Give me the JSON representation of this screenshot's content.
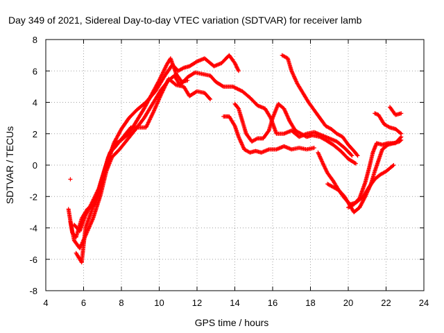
{
  "chart_data": {
    "type": "scatter",
    "title": "Day 349 of 2021, Sidereal Day-to-day VTEC variation (SDTVAR) for receiver lamb",
    "xlabel": "GPS time / hours",
    "ylabel": "SDTVAR / TECUs",
    "xlim": [
      4,
      24
    ],
    "ylim": [
      -8,
      8
    ],
    "xticks": [
      4,
      6,
      8,
      10,
      12,
      14,
      16,
      18,
      20,
      22,
      24
    ],
    "yticks": [
      -8,
      -6,
      -4,
      -2,
      0,
      2,
      4,
      6,
      8
    ],
    "xtick_labels": [
      "4",
      "6",
      "8",
      "10",
      "12",
      "14",
      "16",
      "18",
      "20",
      "22",
      "24"
    ],
    "ytick_labels": [
      "-8",
      "-6",
      "-4",
      "-2",
      "0",
      "2",
      "4",
      "6",
      "8"
    ],
    "grid": true,
    "marker": "plus",
    "color": "#ff0000",
    "series": [
      {
        "points": [
          [
            5.3,
            -0.9
          ]
        ]
      },
      {
        "points": [
          [
            5.2,
            -2.8
          ],
          [
            5.4,
            -4.3
          ],
          [
            5.6,
            -4.6
          ],
          [
            5.9,
            -3.4
          ],
          [
            6.2,
            -2.8
          ],
          [
            6.6,
            -2.5
          ],
          [
            7.0,
            -1.0
          ],
          [
            7.3,
            0.2
          ],
          [
            7.6,
            1.4
          ],
          [
            8.0,
            2.3
          ],
          [
            8.4,
            3.0
          ],
          [
            8.8,
            3.5
          ],
          [
            9.3,
            4.0
          ],
          [
            9.8,
            4.7
          ],
          [
            10.3,
            5.7
          ],
          [
            10.7,
            6.4
          ],
          [
            11.0,
            6.0
          ],
          [
            11.3,
            6.2
          ],
          [
            11.6,
            6.3
          ],
          [
            12.0,
            6.6
          ],
          [
            12.4,
            6.8
          ],
          [
            12.9,
            6.3
          ],
          [
            13.3,
            6.5
          ],
          [
            13.7,
            7.0
          ],
          [
            14.0,
            6.5
          ],
          [
            14.2,
            6.0
          ]
        ]
      },
      {
        "points": [
          [
            5.3,
            -3.6
          ],
          [
            5.5,
            -4.8
          ],
          [
            5.8,
            -5.3
          ],
          [
            6.1,
            -4.5
          ],
          [
            6.5,
            -3.4
          ],
          [
            6.9,
            -1.9
          ],
          [
            7.2,
            -0.4
          ],
          [
            7.5,
            0.5
          ],
          [
            7.9,
            1.0
          ],
          [
            8.3,
            1.6
          ],
          [
            8.7,
            2.2
          ],
          [
            9.2,
            3.0
          ],
          [
            9.7,
            4.0
          ],
          [
            10.1,
            4.8
          ],
          [
            10.5,
            5.4
          ],
          [
            10.8,
            5.7
          ],
          [
            11.1,
            5.1
          ],
          [
            11.5,
            5.6
          ],
          [
            11.9,
            5.9
          ],
          [
            12.3,
            5.8
          ],
          [
            12.7,
            5.7
          ],
          [
            13.0,
            5.3
          ],
          [
            13.4,
            5.0
          ],
          [
            13.9,
            5.0
          ],
          [
            14.4,
            4.7
          ],
          [
            14.8,
            4.3
          ],
          [
            15.2,
            3.8
          ],
          [
            15.6,
            3.6
          ],
          [
            15.9,
            3.0
          ],
          [
            16.2,
            2.0
          ],
          [
            16.6,
            2.0
          ],
          [
            17.0,
            2.2
          ],
          [
            17.4,
            1.8
          ],
          [
            17.8,
            2.0
          ],
          [
            18.2,
            2.1
          ],
          [
            18.6,
            1.9
          ],
          [
            19.0,
            1.7
          ],
          [
            19.4,
            1.5
          ],
          [
            19.8,
            1.1
          ],
          [
            20.2,
            0.6
          ]
        ]
      },
      {
        "points": [
          [
            5.5,
            -3.8
          ],
          [
            5.8,
            -4.2
          ],
          [
            6.1,
            -3.2
          ],
          [
            6.4,
            -2.5
          ],
          [
            6.8,
            -1.5
          ],
          [
            7.1,
            -0.3
          ],
          [
            7.4,
            0.8
          ],
          [
            7.7,
            1.2
          ],
          [
            8.1,
            1.8
          ],
          [
            8.5,
            2.4
          ],
          [
            8.9,
            2.4
          ],
          [
            9.3,
            2.4
          ],
          [
            9.7,
            3.4
          ],
          [
            10.1,
            4.5
          ],
          [
            10.5,
            5.5
          ],
          [
            10.9,
            5.1
          ],
          [
            11.3,
            5.0
          ],
          [
            11.6,
            4.4
          ],
          [
            12.0,
            4.7
          ],
          [
            12.4,
            4.6
          ],
          [
            12.7,
            4.2
          ]
        ]
      },
      {
        "points": [
          [
            5.6,
            -5.6
          ],
          [
            5.9,
            -6.2
          ],
          [
            6.1,
            -4.0
          ],
          [
            6.4,
            -3.0
          ],
          [
            6.7,
            -2.0
          ],
          [
            7.0,
            -0.8
          ],
          [
            7.3,
            0.5
          ],
          [
            7.6,
            1.3
          ],
          [
            8.0,
            1.6
          ],
          [
            8.4,
            2.0
          ],
          [
            8.8,
            2.8
          ],
          [
            9.2,
            3.6
          ],
          [
            9.6,
            4.5
          ],
          [
            10.0,
            5.4
          ],
          [
            10.4,
            6.4
          ],
          [
            10.6,
            6.8
          ],
          [
            10.9,
            5.8
          ],
          [
            11.2,
            5.3
          ],
          [
            11.5,
            5.4
          ]
        ]
      },
      {
        "points": [
          [
            13.4,
            3.1
          ],
          [
            13.7,
            3.1
          ],
          [
            14.0,
            2.5
          ],
          [
            14.2,
            1.8
          ],
          [
            14.5,
            1.0
          ],
          [
            14.8,
            0.8
          ],
          [
            15.1,
            0.9
          ],
          [
            15.4,
            0.8
          ],
          [
            15.8,
            1.0
          ],
          [
            16.2,
            1.0
          ],
          [
            16.6,
            1.2
          ],
          [
            17.0,
            1.0
          ],
          [
            17.4,
            1.1
          ],
          [
            17.8,
            1.0
          ],
          [
            18.2,
            1.1
          ]
        ]
      },
      {
        "points": [
          [
            14.0,
            3.9
          ],
          [
            14.2,
            3.6
          ],
          [
            14.4,
            2.8
          ],
          [
            14.6,
            2.0
          ],
          [
            14.9,
            1.5
          ],
          [
            15.2,
            1.7
          ],
          [
            15.5,
            1.7
          ],
          [
            15.8,
            2.2
          ],
          [
            16.0,
            3.0
          ],
          [
            16.3,
            3.9
          ],
          [
            16.6,
            3.6
          ],
          [
            16.9,
            2.8
          ],
          [
            17.2,
            2.2
          ],
          [
            17.5,
            2.0
          ],
          [
            17.8,
            1.8
          ],
          [
            18.1,
            1.9
          ],
          [
            18.5,
            1.8
          ],
          [
            18.8,
            1.6
          ],
          [
            19.2,
            1.3
          ],
          [
            19.6,
            0.9
          ],
          [
            20.0,
            0.4
          ],
          [
            20.4,
            0.1
          ]
        ]
      },
      {
        "points": [
          [
            16.5,
            7.0
          ],
          [
            16.8,
            6.8
          ],
          [
            17.0,
            6.0
          ],
          [
            17.3,
            5.2
          ],
          [
            17.6,
            4.6
          ],
          [
            17.9,
            4.0
          ],
          [
            18.2,
            3.5
          ],
          [
            18.5,
            3.0
          ],
          [
            18.8,
            2.5
          ],
          [
            19.1,
            2.3
          ],
          [
            19.4,
            2.0
          ],
          [
            19.7,
            1.8
          ],
          [
            20.0,
            1.3
          ],
          [
            20.3,
            0.9
          ],
          [
            20.5,
            0.6
          ]
        ]
      },
      {
        "points": [
          [
            18.4,
            0.8
          ],
          [
            18.7,
            0.0
          ],
          [
            18.9,
            -0.5
          ],
          [
            19.2,
            -1.0
          ],
          [
            19.5,
            -1.6
          ],
          [
            19.8,
            -2.1
          ],
          [
            20.1,
            -2.5
          ],
          [
            20.4,
            -2.4
          ],
          [
            20.8,
            -2.0
          ],
          [
            21.1,
            -1.4
          ],
          [
            21.4,
            -0.9
          ],
          [
            21.7,
            -0.6
          ],
          [
            22.0,
            -0.4
          ],
          [
            22.4,
            0.0
          ]
        ]
      },
      {
        "points": [
          [
            18.9,
            -1.2
          ],
          [
            19.2,
            -1.4
          ],
          [
            19.5,
            -1.6
          ],
          [
            19.8,
            -2.0
          ],
          [
            20.1,
            -2.6
          ],
          [
            20.3,
            -3.0
          ],
          [
            20.6,
            -2.7
          ],
          [
            20.9,
            -2.0
          ],
          [
            21.2,
            -1.2
          ],
          [
            21.4,
            -0.4
          ],
          [
            21.6,
            0.3
          ],
          [
            21.8,
            1.0
          ],
          [
            22.1,
            1.3
          ],
          [
            22.4,
            1.4
          ],
          [
            22.7,
            1.5
          ],
          [
            22.8,
            1.6
          ]
        ]
      },
      {
        "points": [
          [
            20.0,
            -2.7
          ],
          [
            20.3,
            -2.5
          ],
          [
            20.6,
            -2.1
          ],
          [
            20.9,
            -1.1
          ],
          [
            21.1,
            -0.2
          ],
          [
            21.3,
            0.8
          ],
          [
            21.5,
            1.4
          ],
          [
            21.8,
            1.3
          ],
          [
            22.1,
            1.4
          ],
          [
            22.5,
            1.4
          ],
          [
            22.8,
            1.8
          ]
        ]
      },
      {
        "points": [
          [
            21.4,
            3.3
          ],
          [
            21.6,
            3.2
          ],
          [
            21.9,
            2.6
          ],
          [
            22.2,
            2.4
          ],
          [
            22.5,
            2.3
          ],
          [
            22.8,
            2.0
          ]
        ]
      },
      {
        "points": [
          [
            22.2,
            3.7
          ],
          [
            22.5,
            3.2
          ],
          [
            22.8,
            3.3
          ]
        ]
      }
    ]
  }
}
